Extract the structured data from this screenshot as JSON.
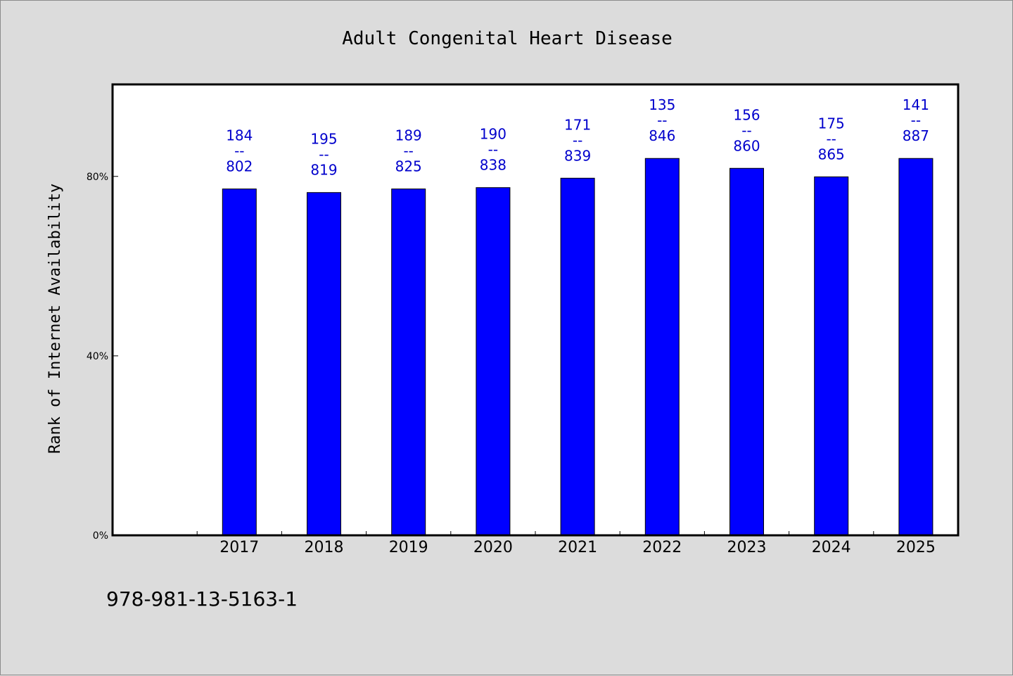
{
  "chart_data": {
    "type": "bar",
    "title": "Adult Congenital Heart Disease",
    "xlabel": "",
    "ylabel": "Rank of Internet Availability",
    "categories": [
      "2017",
      "2018",
      "2019",
      "2020",
      "2021",
      "2022",
      "2023",
      "2024",
      "2025"
    ],
    "values": [
      77.2,
      76.4,
      77.2,
      77.5,
      79.6,
      84.0,
      81.8,
      79.9,
      84.0
    ],
    "value_unit": "%",
    "data_labels": [
      {
        "top": "184",
        "sep": "--",
        "bottom": "802"
      },
      {
        "top": "195",
        "sep": "--",
        "bottom": "819"
      },
      {
        "top": "189",
        "sep": "--",
        "bottom": "825"
      },
      {
        "top": "190",
        "sep": "--",
        "bottom": "838"
      },
      {
        "top": "171",
        "sep": "--",
        "bottom": "839"
      },
      {
        "top": "135",
        "sep": "--",
        "bottom": "846"
      },
      {
        "top": "156",
        "sep": "--",
        "bottom": "860"
      },
      {
        "top": "175",
        "sep": "--",
        "bottom": "865"
      },
      {
        "top": "141",
        "sep": "--",
        "bottom": "887"
      }
    ],
    "yticks": [
      {
        "value": 0,
        "label": "0%"
      },
      {
        "value": 40,
        "label": "40%"
      },
      {
        "value": 80,
        "label": "80%"
      }
    ],
    "ylim": [
      0,
      100.5
    ],
    "x_slot_count": 10,
    "grid": false,
    "legend": "none",
    "colors": {
      "bar": "#0000ff",
      "bar_edge": "#000000",
      "data_label": "#0000cc",
      "plot_bg": "#ffffff",
      "figure_bg": "#dcdcdc"
    }
  },
  "footer": {
    "code": "978-981-13-5163-1"
  }
}
